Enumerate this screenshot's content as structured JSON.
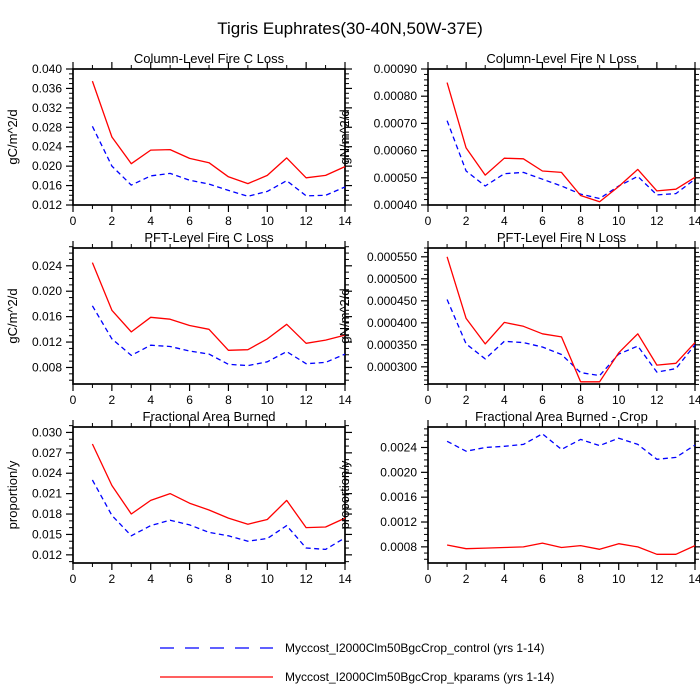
{
  "figure_title": "Tigris Euphrates(30-40N,50W-37E)",
  "legend": {
    "entries": [
      {
        "label": "Myccost_I2000Clm50BgcCrop_control (yrs 1-14)",
        "color": "#0000ff",
        "line_style": "dashed"
      },
      {
        "label": "Myccost_I2000Clm50BgcCrop_kparams (yrs 1-14)",
        "color": "#ff0000",
        "line_style": "solid"
      }
    ]
  },
  "chart_data": [
    {
      "type": "line",
      "title": "Column-Level Fire C Loss",
      "ylabel": "gC/m^2/d",
      "x": [
        1,
        2,
        3,
        4,
        5,
        6,
        7,
        8,
        9,
        10,
        11,
        12,
        13,
        14
      ],
      "xlim": [
        0,
        14
      ],
      "xticks": [
        0,
        2,
        4,
        6,
        8,
        10,
        12,
        14
      ],
      "ylim": [
        0.012,
        0.04
      ],
      "yticks": [
        0.012,
        0.016,
        0.02,
        0.024,
        0.028,
        0.032,
        0.036,
        0.04
      ],
      "yticklabels": [
        "0.012",
        "0.016",
        "0.020",
        "0.024",
        "0.028",
        "0.032",
        "0.036",
        "0.040"
      ],
      "yminor_per_major": 3,
      "grid": false,
      "series": [
        {
          "name": "control",
          "color": "#0000ff",
          "line_style": "dashed",
          "values": [
            0.0282,
            0.02,
            0.0161,
            0.018,
            0.0185,
            0.0171,
            0.0163,
            0.015,
            0.0138,
            0.0148,
            0.017,
            0.0139,
            0.014,
            0.0157
          ]
        },
        {
          "name": "kparams",
          "color": "#ff0000",
          "line_style": "solid",
          "values": [
            0.0375,
            0.026,
            0.0205,
            0.0233,
            0.0234,
            0.0216,
            0.0207,
            0.0178,
            0.0164,
            0.0181,
            0.0217,
            0.0176,
            0.0181,
            0.0199
          ]
        }
      ]
    },
    {
      "type": "line",
      "title": "Column-Level Fire N Loss",
      "ylabel": "gN/m^2/d",
      "x": [
        1,
        2,
        3,
        4,
        5,
        6,
        7,
        8,
        9,
        10,
        11,
        12,
        13,
        14
      ],
      "xlim": [
        0,
        14
      ],
      "xticks": [
        0,
        2,
        4,
        6,
        8,
        10,
        12,
        14
      ],
      "ylim": [
        0.0004,
        0.0009
      ],
      "yticks": [
        0.0004,
        0.0005,
        0.0006,
        0.0007,
        0.0008,
        0.0009
      ],
      "yticklabels": [
        "0.00040",
        "0.00050",
        "0.00060",
        "0.00070",
        "0.00080",
        "0.00090"
      ],
      "yminor_per_major": 4,
      "grid": false,
      "series": [
        {
          "name": "control",
          "color": "#0000ff",
          "line_style": "dashed",
          "values": [
            0.00071,
            0.000525,
            0.00047,
            0.000515,
            0.00052,
            0.000495,
            0.00047,
            0.00044,
            0.000424,
            0.00047,
            0.000505,
            0.000437,
            0.000442,
            0.000495
          ]
        },
        {
          "name": "kparams",
          "color": "#ff0000",
          "line_style": "solid",
          "values": [
            0.00085,
            0.00061,
            0.00051,
            0.000572,
            0.00057,
            0.000525,
            0.00052,
            0.000435,
            0.000412,
            0.000468,
            0.000531,
            0.000452,
            0.000458,
            0.000502
          ]
        }
      ]
    },
    {
      "type": "line",
      "title": "PFT-Level Fire C Loss",
      "ylabel": "gC/m^2/d",
      "x": [
        1,
        2,
        3,
        4,
        5,
        6,
        7,
        8,
        9,
        10,
        11,
        12,
        13,
        14
      ],
      "xlim": [
        0,
        14
      ],
      "xticks": [
        0,
        2,
        4,
        6,
        8,
        10,
        12,
        14
      ],
      "ylim": [
        0.0054,
        0.0268
      ],
      "yticks": [
        0.008,
        0.012,
        0.016,
        0.02,
        0.024
      ],
      "yticklabels": [
        "0.008",
        "0.012",
        "0.016",
        "0.020",
        "0.024"
      ],
      "yminor_per_major": 3,
      "grid": false,
      "series": [
        {
          "name": "control",
          "color": "#0000ff",
          "line_style": "dashed",
          "values": [
            0.0177,
            0.0125,
            0.0099,
            0.0115,
            0.0113,
            0.0106,
            0.0101,
            0.0085,
            0.0083,
            0.0089,
            0.0105,
            0.0086,
            0.0088,
            0.0101
          ]
        },
        {
          "name": "kparams",
          "color": "#ff0000",
          "line_style": "solid",
          "values": [
            0.0245,
            0.017,
            0.0136,
            0.0159,
            0.0156,
            0.0146,
            0.014,
            0.0107,
            0.0108,
            0.0125,
            0.0148,
            0.0118,
            0.0123,
            0.0131
          ]
        }
      ]
    },
    {
      "type": "line",
      "title": "PFT-Level Fire N Loss",
      "ylabel": "gN/m^2/d",
      "x": [
        1,
        2,
        3,
        4,
        5,
        6,
        7,
        8,
        9,
        10,
        11,
        12,
        13,
        14
      ],
      "xlim": [
        0,
        14
      ],
      "xticks": [
        0,
        2,
        4,
        6,
        8,
        10,
        12,
        14
      ],
      "ylim": [
        0.000261,
        0.00057
      ],
      "yticks": [
        0.0003,
        0.00035,
        0.0004,
        0.00045,
        0.0005,
        0.00055
      ],
      "yticklabels": [
        "0.000300",
        "0.000350",
        "0.000400",
        "0.000450",
        "0.000500",
        "0.000550"
      ],
      "yminor_per_major": 4,
      "grid": false,
      "series": [
        {
          "name": "control",
          "color": "#0000ff",
          "line_style": "dashed",
          "values": [
            0.000453,
            0.000352,
            0.000318,
            0.000358,
            0.000355,
            0.000345,
            0.000328,
            0.000287,
            0.00028,
            0.000329,
            0.000347,
            0.000288,
            0.000296,
            0.00035
          ]
        },
        {
          "name": "kparams",
          "color": "#ff0000",
          "line_style": "solid",
          "values": [
            0.00055,
            0.00041,
            0.000352,
            0.000401,
            0.000392,
            0.000375,
            0.000368,
            0.000266,
            0.000266,
            0.000332,
            0.000375,
            0.000304,
            0.000308,
            0.000355
          ]
        }
      ]
    },
    {
      "type": "line",
      "title": "Fractional Area Burned",
      "ylabel": "proportion/y",
      "x": [
        1,
        2,
        3,
        4,
        5,
        6,
        7,
        8,
        9,
        10,
        11,
        12,
        13,
        14
      ],
      "xlim": [
        0,
        14
      ],
      "xticks": [
        0,
        2,
        4,
        6,
        8,
        10,
        12,
        14
      ],
      "ylim": [
        0.0108,
        0.0308
      ],
      "yticks": [
        0.012,
        0.015,
        0.018,
        0.021,
        0.024,
        0.027,
        0.03
      ],
      "yticklabels": [
        "0.012",
        "0.015",
        "0.018",
        "0.021",
        "0.024",
        "0.027",
        "0.030"
      ],
      "yminor_per_major": 2,
      "grid": false,
      "series": [
        {
          "name": "control",
          "color": "#0000ff",
          "line_style": "dashed",
          "values": [
            0.023,
            0.0178,
            0.0148,
            0.0163,
            0.0171,
            0.0164,
            0.0153,
            0.0148,
            0.014,
            0.0144,
            0.0163,
            0.013,
            0.0128,
            0.0145
          ]
        },
        {
          "name": "kparams",
          "color": "#ff0000",
          "line_style": "solid",
          "values": [
            0.0283,
            0.0222,
            0.018,
            0.02,
            0.021,
            0.0196,
            0.0186,
            0.0174,
            0.0165,
            0.0172,
            0.02,
            0.016,
            0.0161,
            0.0174
          ]
        }
      ]
    },
    {
      "type": "line",
      "title": "Fractional Area Burned - Crop",
      "ylabel": "proportion/y",
      "x": [
        1,
        2,
        3,
        4,
        5,
        6,
        7,
        8,
        9,
        10,
        11,
        12,
        13,
        14
      ],
      "xlim": [
        0,
        14
      ],
      "xticks": [
        0,
        2,
        4,
        6,
        8,
        10,
        12,
        14
      ],
      "ylim": [
        0.00054,
        0.00273
      ],
      "yticks": [
        0.0008,
        0.0012,
        0.0016,
        0.002,
        0.0024
      ],
      "yticklabels": [
        "0.0008",
        "0.0012",
        "0.0016",
        "0.0020",
        "0.0024"
      ],
      "yminor_per_major": 3,
      "grid": false,
      "series": [
        {
          "name": "control",
          "color": "#0000ff",
          "line_style": "dashed",
          "values": [
            0.0025,
            0.00234,
            0.0024,
            0.00242,
            0.00245,
            0.00262,
            0.00237,
            0.00253,
            0.00243,
            0.00255,
            0.00245,
            0.00221,
            0.00224,
            0.00244
          ]
        },
        {
          "name": "kparams",
          "color": "#ff0000",
          "line_style": "solid",
          "values": [
            0.00083,
            0.00077,
            0.00078,
            0.00079,
            0.0008,
            0.00086,
            0.00079,
            0.00082,
            0.00076,
            0.00085,
            0.0008,
            0.00068,
            0.00068,
            0.00082
          ]
        }
      ]
    }
  ]
}
